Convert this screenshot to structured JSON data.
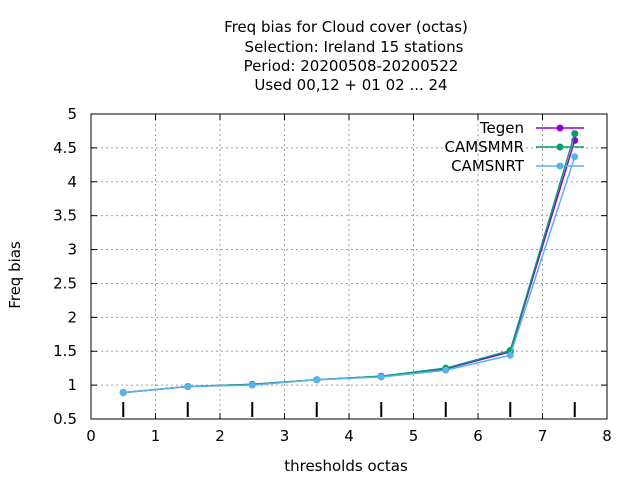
{
  "chart_data": {
    "type": "line",
    "title_lines": [
      "Freq bias  for Cloud cover (octas)",
      "Selection: Ireland      15 stations",
      "Period: 20200508-20200522",
      "Used  00,12  + 01 02 ... 24"
    ],
    "xlabel": "thresholds octas",
    "ylabel": "Freq bias",
    "xlim": [
      0,
      8
    ],
    "ylim": [
      0.5,
      5
    ],
    "x_ticks": [
      "0",
      "1",
      "2",
      "3",
      "4",
      "5",
      "6",
      "7",
      "8"
    ],
    "y_ticks": [
      "0.5",
      "1",
      "1.5",
      "2",
      "2.5",
      "3",
      "3.5",
      "4",
      "4.5",
      "5"
    ],
    "grid": true,
    "legend_position": "top-right",
    "x": [
      0.5,
      1.5,
      2.5,
      3.5,
      4.5,
      5.5,
      6.5,
      7.5
    ],
    "series": [
      {
        "name": "Tegen",
        "color": "#9400d3",
        "marker": "circle",
        "values": [
          0.89,
          0.98,
          1.01,
          1.08,
          1.13,
          1.24,
          1.49,
          4.61
        ]
      },
      {
        "name": "CAMSMMR",
        "color": "#009e73",
        "marker": "circle",
        "values": [
          0.89,
          0.98,
          1.01,
          1.08,
          1.13,
          1.25,
          1.51,
          4.71
        ]
      },
      {
        "name": "CAMSNRT",
        "color": "#56b4e9",
        "marker": "circle",
        "values": [
          0.89,
          0.98,
          1.0,
          1.08,
          1.12,
          1.22,
          1.44,
          4.37
        ]
      }
    ]
  }
}
